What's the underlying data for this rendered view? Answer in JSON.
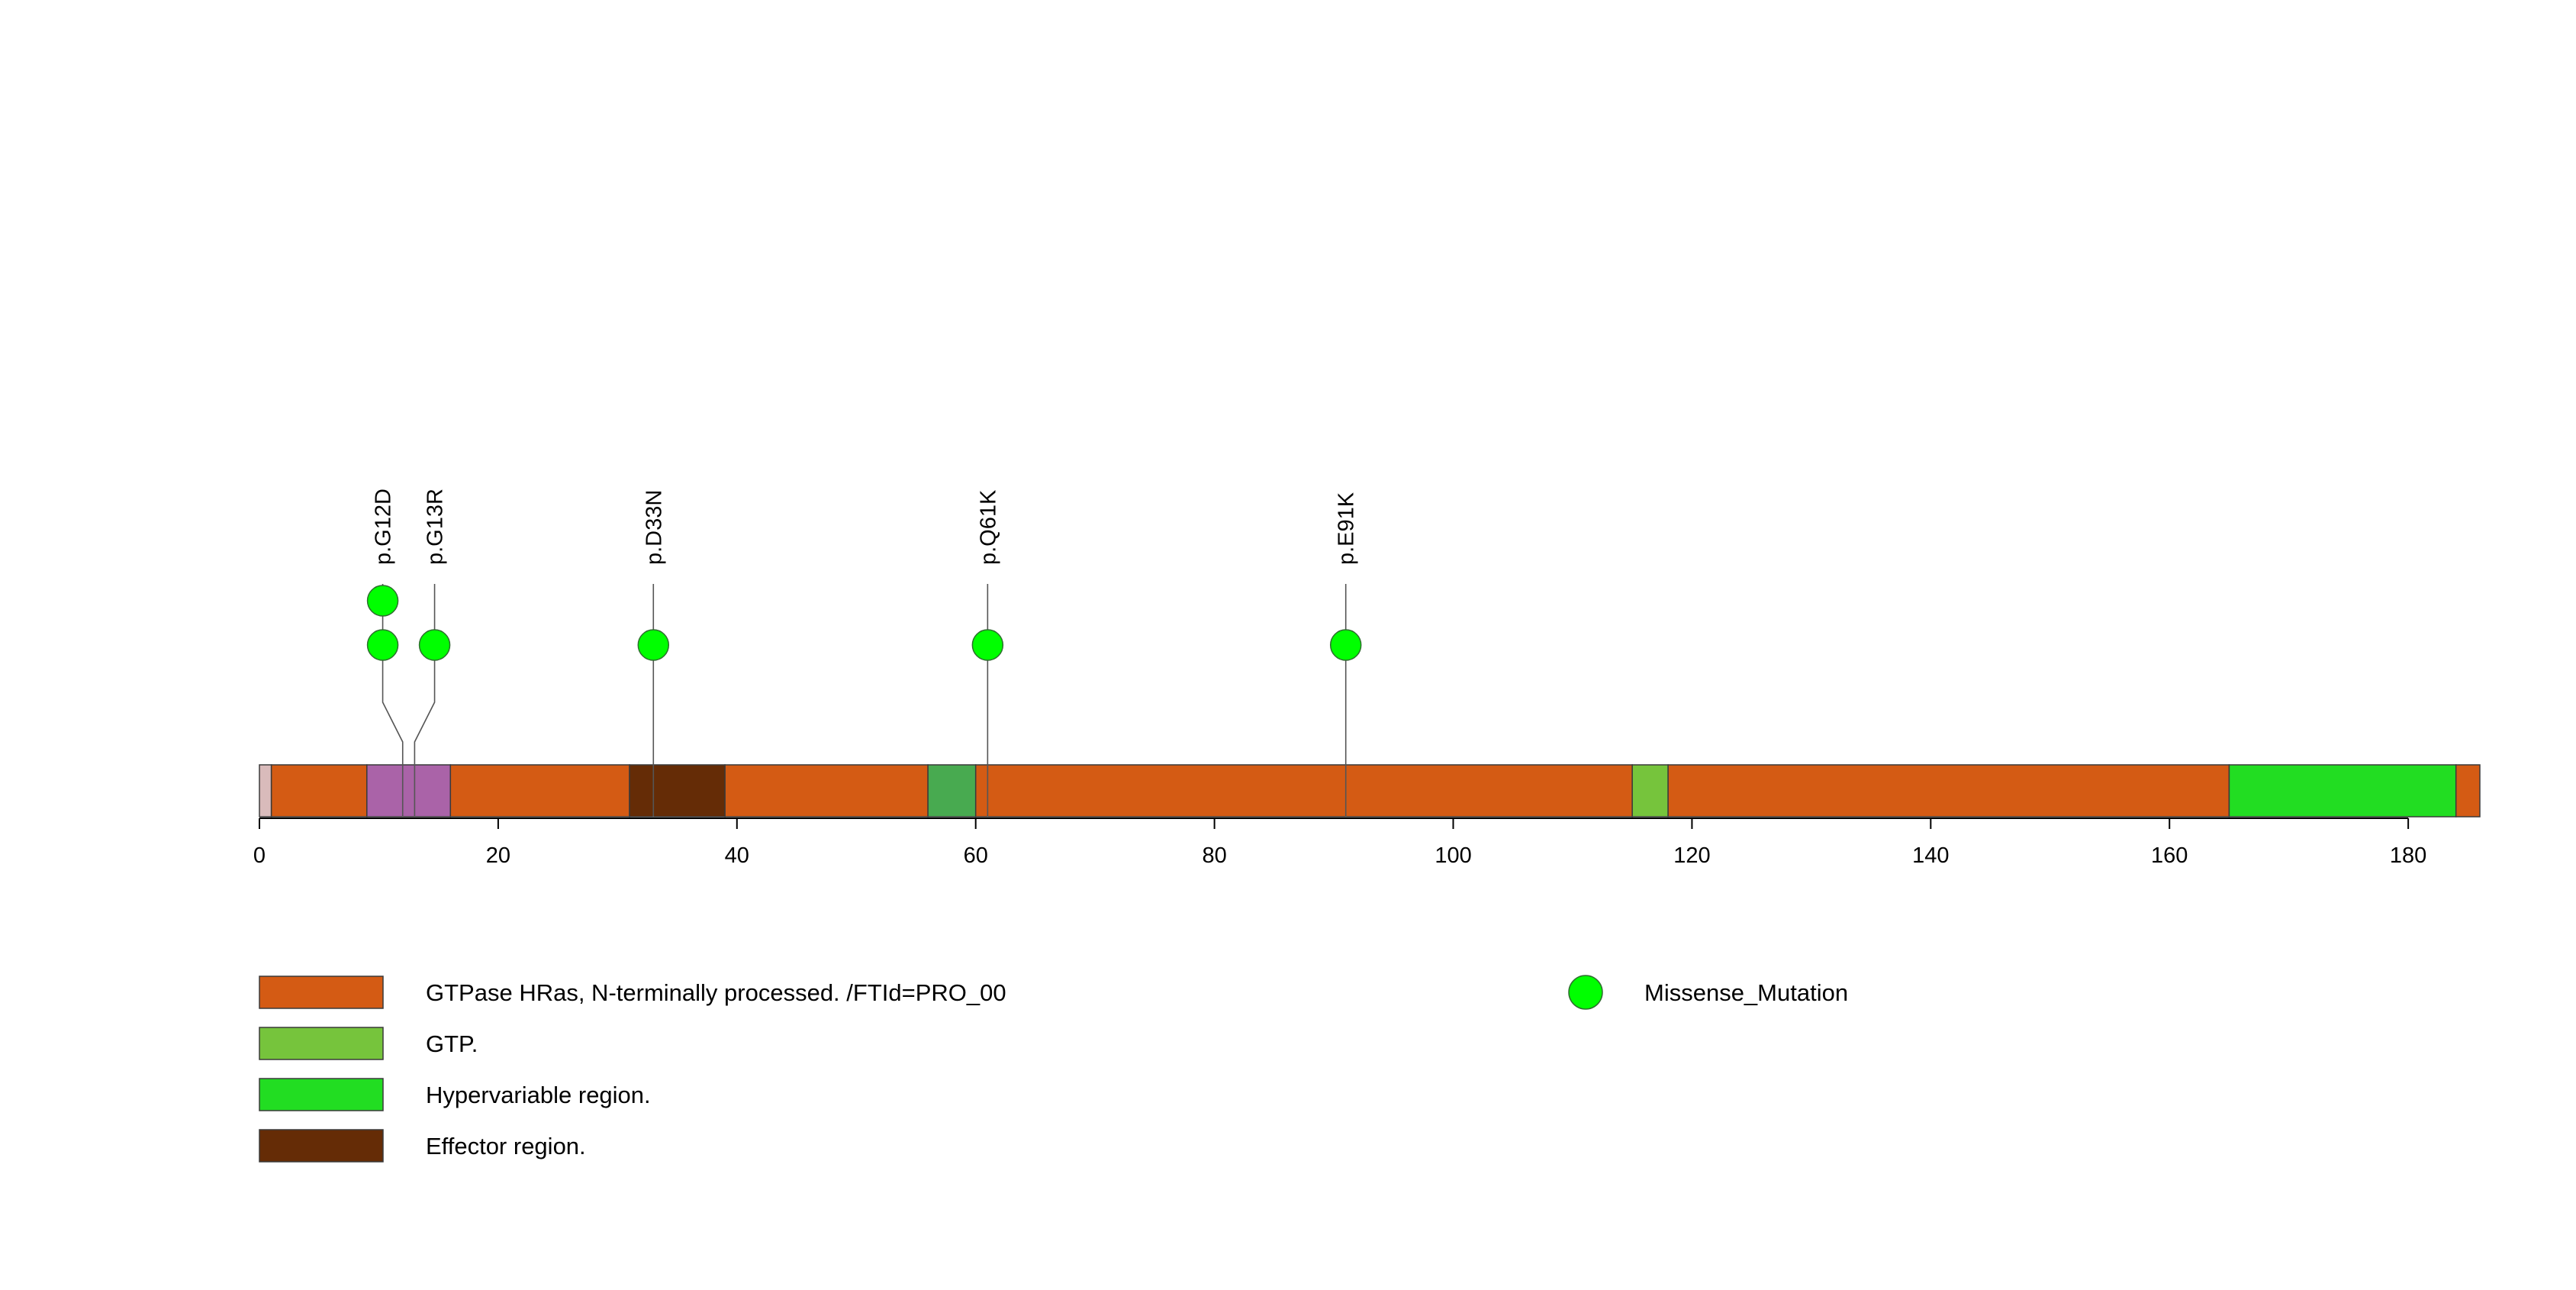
{
  "chart_data": {
    "type": "lollipop",
    "title": "",
    "xlabel": "",
    "ylabel": "",
    "xlim": [
      0,
      186
    ],
    "x_ticks": [
      0,
      20,
      40,
      60,
      80,
      100,
      120,
      140,
      160,
      180
    ],
    "protein_length": 186,
    "domains": [
      {
        "start": 0,
        "end": 1,
        "color": "#D9BBBB",
        "legend": "none"
      },
      {
        "start": 1,
        "end": 9,
        "color": "#D45B14",
        "legend": "GTPase HRas, N-terminally processed. /FTId=PRO_00"
      },
      {
        "start": 9,
        "end": 16,
        "color": "#AA63A8",
        "legend": "none"
      },
      {
        "start": 16,
        "end": 31,
        "color": "#D45B14",
        "legend": "GTPase HRas, N-terminally processed. /FTId=PRO_00"
      },
      {
        "start": 31,
        "end": 39,
        "color": "#652C06",
        "legend": "Effector region."
      },
      {
        "start": 39,
        "end": 56,
        "color": "#D45B14",
        "legend": "GTPase HRas, N-terminally processed. /FTId=PRO_00"
      },
      {
        "start": 56,
        "end": 60,
        "color": "#48AA50",
        "legend": "none"
      },
      {
        "start": 60,
        "end": 115,
        "color": "#D45B14",
        "legend": "GTPase HRas, N-terminally processed. /FTId=PRO_00"
      },
      {
        "start": 115,
        "end": 118,
        "color": "#76C43C",
        "legend": "GTP."
      },
      {
        "start": 118,
        "end": 165,
        "color": "#D45B14",
        "legend": "GTPase HRas, N-terminally processed. /FTId=PRO_00"
      },
      {
        "start": 165,
        "end": 184,
        "color": "#22DD22",
        "legend": "Hypervariable region."
      },
      {
        "start": 184,
        "end": 186,
        "color": "#D45B14",
        "legend": "GTPase HRas, N-terminally processed. /FTId=PRO_00"
      }
    ],
    "mutations": [
      {
        "label": "p.G12D",
        "position": 12,
        "count": 2,
        "type": "Missense_Mutation"
      },
      {
        "label": "p.G13R",
        "position": 13,
        "count": 1,
        "type": "Missense_Mutation"
      },
      {
        "label": "p.D33N",
        "position": 33,
        "count": 1,
        "type": "Missense_Mutation"
      },
      {
        "label": "p.Q61K",
        "position": 61,
        "count": 1,
        "type": "Missense_Mutation"
      },
      {
        "label": "p.E91K",
        "position": 91,
        "count": 1,
        "type": "Missense_Mutation"
      }
    ],
    "domain_legend": [
      {
        "label": "GTPase HRas, N-terminally processed. /FTId=PRO_00",
        "color": "#D45B14"
      },
      {
        "label": "GTP.",
        "color": "#76C43C"
      },
      {
        "label": "Hypervariable region.",
        "color": "#22DD22"
      },
      {
        "label": "Effector region.",
        "color": "#652C06"
      }
    ],
    "mutation_legend": [
      {
        "label": "Missense_Mutation",
        "color": "#00FF00"
      }
    ]
  }
}
